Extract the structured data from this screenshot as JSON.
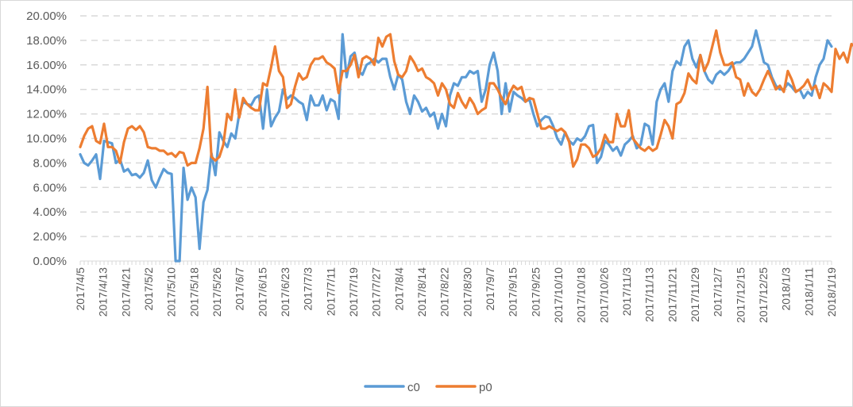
{
  "chart_data": {
    "type": "line",
    "title": "",
    "xlabel": "",
    "ylabel": "",
    "ylim": [
      0,
      0.2
    ],
    "y_ticks": [
      "0.00%",
      "2.00%",
      "4.00%",
      "6.00%",
      "8.00%",
      "10.00%",
      "12.00%",
      "14.00%",
      "16.00%",
      "18.00%",
      "20.00%"
    ],
    "y_tick_values": [
      0,
      0.02,
      0.04,
      0.06,
      0.08,
      0.1,
      0.12,
      0.14,
      0.16,
      0.18,
      0.2
    ],
    "grid": "horizontal-dashed",
    "legend": "bottom",
    "x_tick_labels": [
      "2017/4/5",
      "2017/4/13",
      "2017/4/21",
      "2017/5/2",
      "2017/5/10",
      "2017/5/18",
      "2017/5/26",
      "2017/6/7",
      "2017/6/15",
      "2017/6/23",
      "2017/7/3",
      "2017/7/11",
      "2017/7/19",
      "2017/7/27",
      "2017/8/4",
      "2017/8/14",
      "2017/8/22",
      "2017/8/30",
      "2017/9/7",
      "2017/9/15",
      "2017/9/25",
      "2017/10/10",
      "2017/10/18",
      "2017/10/26",
      "2017/11/3",
      "2017/11/13",
      "2017/11/21",
      "2017/11/29",
      "2017/12/7",
      "2017/12/15",
      "2017/12/25",
      "2018/1/3",
      "2018/1/11",
      "2018/1/19"
    ],
    "series": [
      {
        "name": "c0",
        "color": "#5b9bd5",
        "values": [
          0.087,
          0.08,
          0.078,
          0.082,
          0.087,
          0.067,
          0.098,
          0.097,
          0.096,
          0.08,
          0.083,
          0.073,
          0.075,
          0.07,
          0.071,
          0.068,
          0.072,
          0.082,
          0.066,
          0.06,
          0.068,
          0.075,
          0.072,
          0.071,
          0.0,
          0.0,
          0.076,
          0.05,
          0.06,
          0.052,
          0.01,
          0.048,
          0.058,
          0.088,
          0.07,
          0.105,
          0.098,
          0.093,
          0.104,
          0.1,
          0.12,
          0.13,
          0.128,
          0.127,
          0.133,
          0.135,
          0.108,
          0.14,
          0.11,
          0.117,
          0.122,
          0.14,
          0.132,
          0.135,
          0.133,
          0.13,
          0.128,
          0.115,
          0.135,
          0.127,
          0.127,
          0.135,
          0.123,
          0.132,
          0.13,
          0.116,
          0.185,
          0.15,
          0.167,
          0.17,
          0.155,
          0.152,
          0.16,
          0.162,
          0.165,
          0.162,
          0.165,
          0.165,
          0.15,
          0.14,
          0.152,
          0.148,
          0.13,
          0.12,
          0.135,
          0.13,
          0.122,
          0.125,
          0.118,
          0.121,
          0.108,
          0.12,
          0.11,
          0.135,
          0.145,
          0.143,
          0.15,
          0.15,
          0.155,
          0.153,
          0.155,
          0.13,
          0.14,
          0.16,
          0.17,
          0.155,
          0.12,
          0.145,
          0.122,
          0.138,
          0.135,
          0.133,
          0.13,
          0.132,
          0.12,
          0.11,
          0.115,
          0.118,
          0.117,
          0.11,
          0.1,
          0.095,
          0.105,
          0.098,
          0.095,
          0.1,
          0.098,
          0.102,
          0.11,
          0.111,
          0.08,
          0.085,
          0.098,
          0.095,
          0.09,
          0.093,
          0.086,
          0.095,
          0.098,
          0.102,
          0.092,
          0.095,
          0.112,
          0.11,
          0.095,
          0.13,
          0.14,
          0.145,
          0.13,
          0.155,
          0.163,
          0.16,
          0.175,
          0.18,
          0.165,
          0.158,
          0.168,
          0.155,
          0.148,
          0.145,
          0.152,
          0.155,
          0.152,
          0.155,
          0.16,
          0.162,
          0.162,
          0.165,
          0.17,
          0.175,
          0.188,
          0.175,
          0.162,
          0.16,
          0.15,
          0.143,
          0.14,
          0.14,
          0.145,
          0.142,
          0.138,
          0.14,
          0.133,
          0.138,
          0.135,
          0.15,
          0.16,
          0.165,
          0.18,
          0.175
        ]
      },
      {
        "name": "p0",
        "color": "#ed7d31",
        "values": [
          0.093,
          0.102,
          0.108,
          0.11,
          0.098,
          0.096,
          0.112,
          0.093,
          0.093,
          0.09,
          0.08,
          0.097,
          0.108,
          0.11,
          0.107,
          0.11,
          0.105,
          0.093,
          0.092,
          0.092,
          0.09,
          0.09,
          0.087,
          0.088,
          0.085,
          0.089,
          0.088,
          0.078,
          0.08,
          0.08,
          0.092,
          0.108,
          0.142,
          0.085,
          0.082,
          0.085,
          0.095,
          0.12,
          0.115,
          0.14,
          0.117,
          0.133,
          0.128,
          0.125,
          0.123,
          0.123,
          0.145,
          0.143,
          0.158,
          0.175,
          0.155,
          0.15,
          0.125,
          0.128,
          0.142,
          0.153,
          0.148,
          0.15,
          0.16,
          0.165,
          0.165,
          0.167,
          0.162,
          0.16,
          0.157,
          0.137,
          0.155,
          0.155,
          0.16,
          0.168,
          0.15,
          0.165,
          0.167,
          0.165,
          0.16,
          0.182,
          0.175,
          0.183,
          0.185,
          0.163,
          0.152,
          0.15,
          0.155,
          0.167,
          0.162,
          0.155,
          0.157,
          0.15,
          0.148,
          0.145,
          0.135,
          0.145,
          0.14,
          0.128,
          0.125,
          0.137,
          0.13,
          0.125,
          0.133,
          0.128,
          0.12,
          0.123,
          0.125,
          0.145,
          0.145,
          0.14,
          0.133,
          0.128,
          0.137,
          0.143,
          0.14,
          0.142,
          0.13,
          0.133,
          0.132,
          0.12,
          0.108,
          0.108,
          0.11,
          0.108,
          0.106,
          0.108,
          0.105,
          0.097,
          0.077,
          0.083,
          0.095,
          0.095,
          0.092,
          0.085,
          0.087,
          0.092,
          0.103,
          0.097,
          0.097,
          0.12,
          0.11,
          0.11,
          0.123,
          0.1,
          0.096,
          0.092,
          0.09,
          0.093,
          0.09,
          0.092,
          0.103,
          0.115,
          0.11,
          0.1,
          0.128,
          0.13,
          0.137,
          0.153,
          0.148,
          0.145,
          0.168,
          0.155,
          0.162,
          0.175,
          0.188,
          0.17,
          0.16,
          0.16,
          0.162,
          0.15,
          0.148,
          0.135,
          0.145,
          0.138,
          0.135,
          0.14,
          0.148,
          0.155,
          0.148,
          0.14,
          0.143,
          0.138,
          0.155,
          0.148,
          0.138,
          0.14,
          0.143,
          0.148,
          0.14,
          0.143,
          0.133,
          0.145,
          0.142,
          0.138,
          0.173,
          0.165,
          0.17,
          0.162,
          0.177,
          0.175
        ]
      }
    ]
  }
}
